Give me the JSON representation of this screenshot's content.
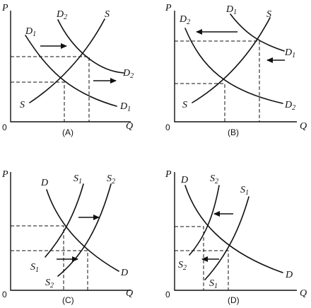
{
  "axes": {
    "price": "P",
    "quantity": "Q",
    "origin": "0"
  },
  "panels": [
    {
      "caption": "(A)",
      "curves": [
        {
          "letter": "D",
          "sub": "1"
        },
        {
          "letter": "D",
          "sub": "2"
        },
        {
          "letter": "S",
          "sub": ""
        }
      ]
    },
    {
      "caption": "(B)",
      "curves": [
        {
          "letter": "D",
          "sub": "1"
        },
        {
          "letter": "D",
          "sub": "2"
        },
        {
          "letter": "S",
          "sub": ""
        }
      ]
    },
    {
      "caption": "(C)",
      "curves": [
        {
          "letter": "D",
          "sub": ""
        },
        {
          "letter": "S",
          "sub": "1"
        },
        {
          "letter": "S",
          "sub": "2"
        }
      ]
    },
    {
      "caption": "(D)",
      "curves": [
        {
          "letter": "D",
          "sub": ""
        },
        {
          "letter": "S",
          "sub": "2"
        },
        {
          "letter": "S",
          "sub": "1"
        }
      ]
    }
  ]
}
